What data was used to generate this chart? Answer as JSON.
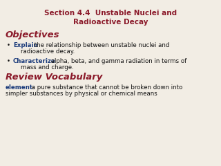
{
  "background_color": "#f2ede4",
  "title_line1": "Section 4.4  Unstable Nuclei and",
  "title_line2": "Radioactive Decay",
  "title_color": "#8b1a2a",
  "title_fontsize": 7.5,
  "section_objectives": "Objectives",
  "section_review": "Review Vocabulary",
  "section_color": "#8b1a2a",
  "section_fontsize": 9.5,
  "bullet_keyword_color": "#1a3a7a",
  "bullet_text_color": "#111111",
  "bullet_fontsize": 6.2,
  "bullet1_keyword": "Explain",
  "bullet1_rest": " the relationship between unstable nuclei and",
  "bullet1_line2": "    radioactive decay.",
  "bullet2_keyword": "Characterize",
  "bullet2_rest": " alpha, beta, and gamma radiation in terms of",
  "bullet2_line2": "    mass and charge.",
  "vocab_keyword": "element:",
  "vocab_rest": " a pure substance that cannot be broken down into",
  "vocab_line2": "simpler substances by physical or chemical means",
  "vocab_keyword_color": "#1a3a7a",
  "vocab_text_color": "#111111",
  "vocab_fontsize": 6.2
}
